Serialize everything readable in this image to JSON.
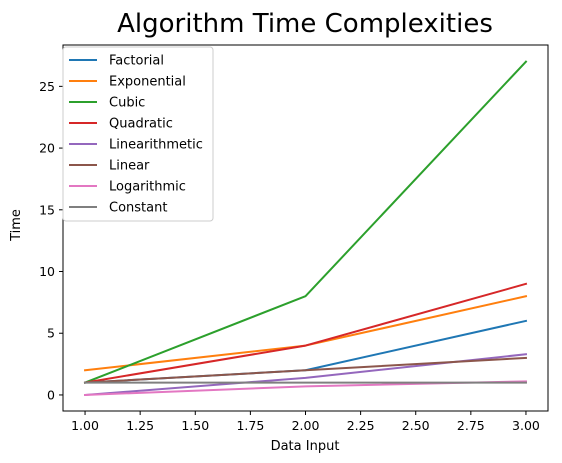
{
  "chart_data": {
    "type": "line",
    "title": "Algorithm Time Complexities",
    "xlabel": "Data Input",
    "ylabel": "Time",
    "xlim": [
      0.9,
      3.1
    ],
    "ylim": [
      -1.3,
      28.35
    ],
    "xticks": [
      "1.00",
      "1.25",
      "1.50",
      "1.75",
      "2.00",
      "2.25",
      "2.50",
      "2.75",
      "3.00"
    ],
    "yticks": [
      "0",
      "5",
      "10",
      "15",
      "20",
      "25"
    ],
    "grid": false,
    "legend_position": "upper-left",
    "series": [
      {
        "name": "Factorial",
        "color": "#1f77b4",
        "x": [
          1,
          2,
          3
        ],
        "y": [
          1,
          2,
          6
        ]
      },
      {
        "name": "Exponential",
        "color": "#ff7f0e",
        "x": [
          1,
          2,
          3
        ],
        "y": [
          2,
          4,
          8
        ]
      },
      {
        "name": "Cubic",
        "color": "#2ca02c",
        "x": [
          1,
          2,
          3
        ],
        "y": [
          1,
          8,
          27
        ]
      },
      {
        "name": "Quadratic",
        "color": "#d62728",
        "x": [
          1,
          2,
          3
        ],
        "y": [
          1,
          4,
          9
        ]
      },
      {
        "name": "Linearithmetic",
        "color": "#9467bd",
        "x": [
          1,
          2,
          3
        ],
        "y": [
          0,
          1.386,
          3.296
        ]
      },
      {
        "name": "Linear",
        "color": "#8c564b",
        "x": [
          1,
          2,
          3
        ],
        "y": [
          1,
          2,
          3
        ]
      },
      {
        "name": "Logarithmic",
        "color": "#e377c2",
        "x": [
          1,
          2,
          3
        ],
        "y": [
          0,
          0.693,
          1.099
        ]
      },
      {
        "name": "Constant",
        "color": "#7f7f7f",
        "x": [
          1,
          2,
          3
        ],
        "y": [
          1,
          1,
          1
        ]
      }
    ]
  }
}
